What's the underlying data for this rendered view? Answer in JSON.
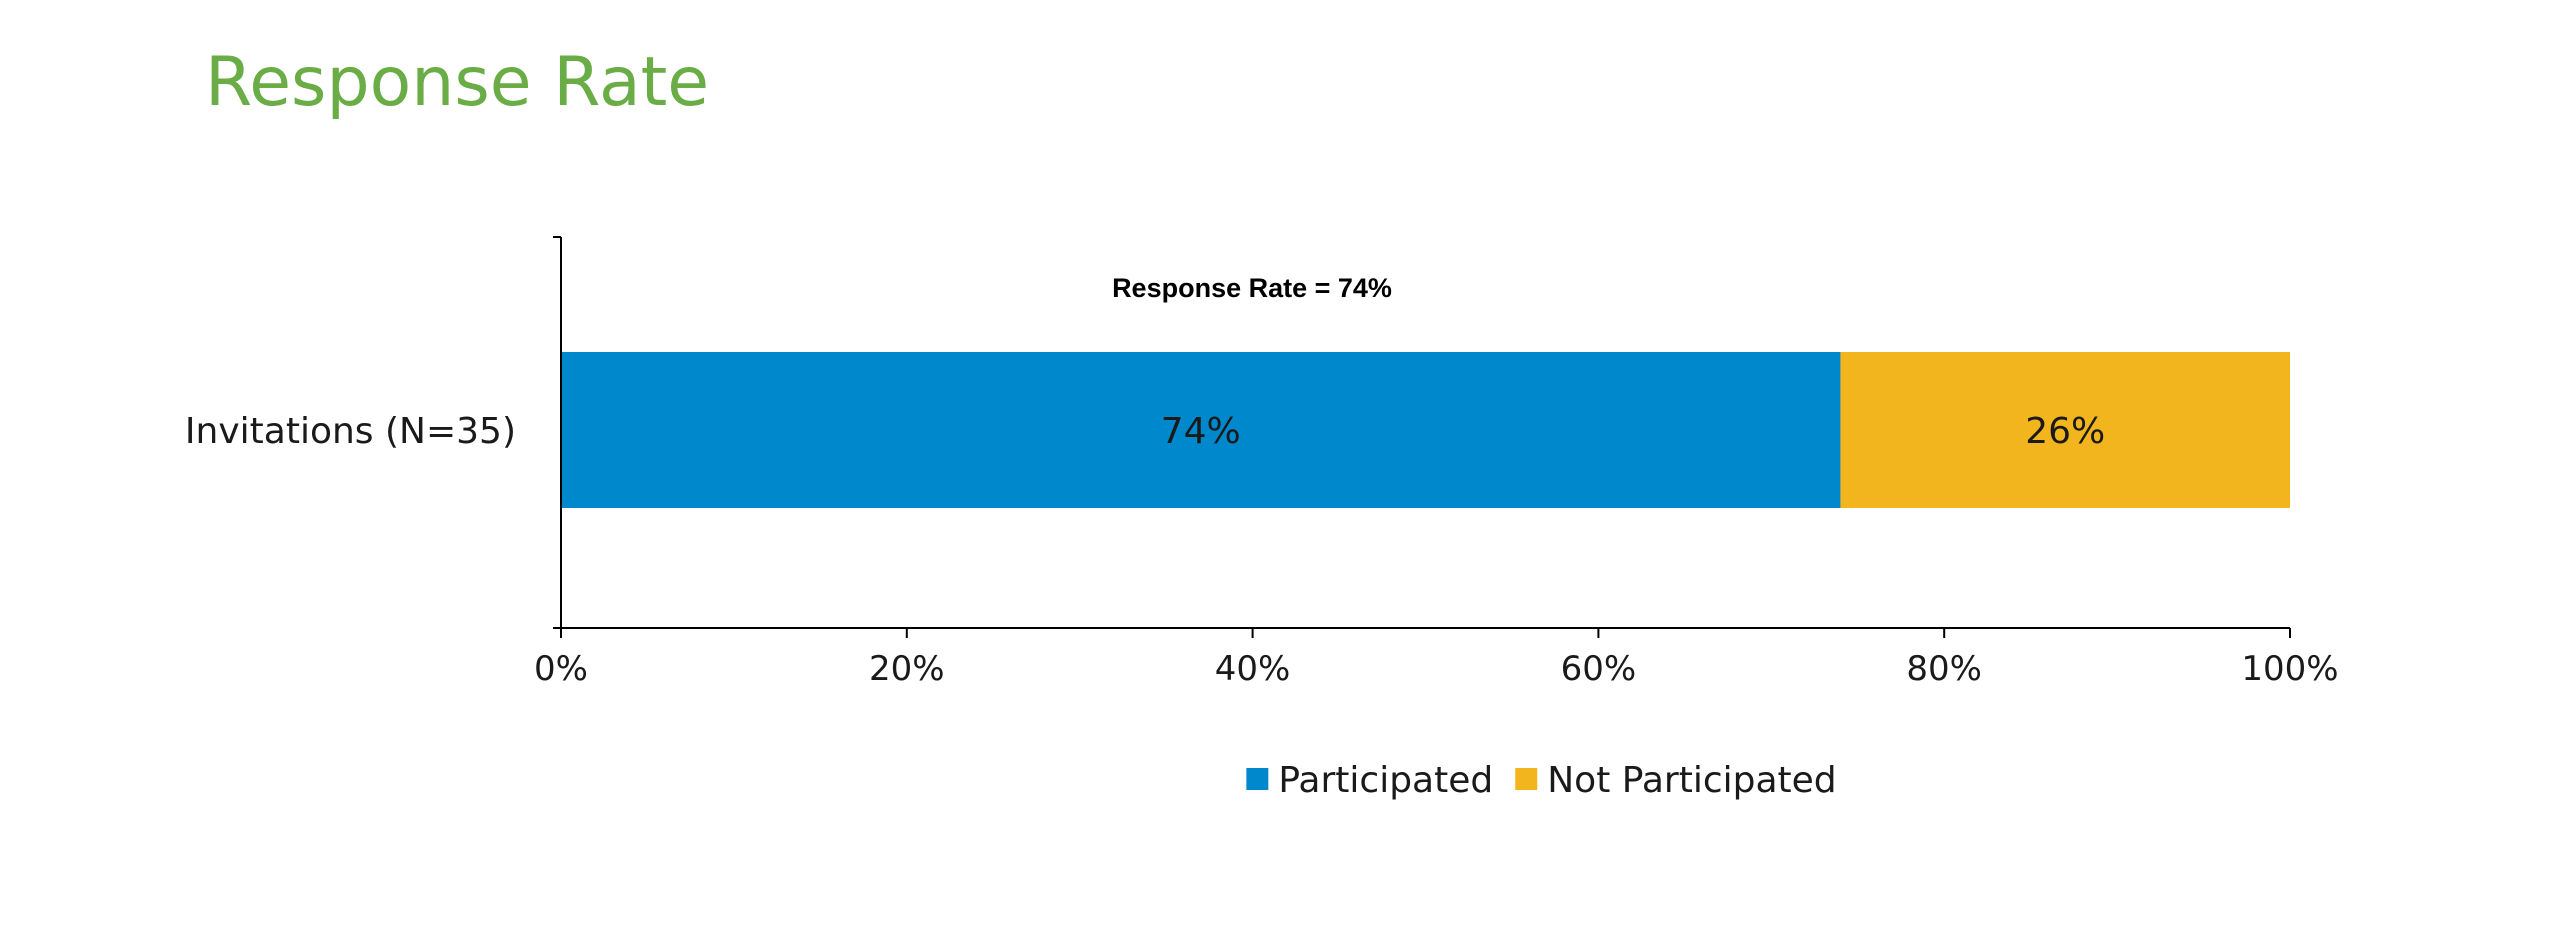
{
  "page": {
    "title": "Response Rate"
  },
  "chart_data": {
    "type": "bar",
    "orientation": "horizontal",
    "stacked": true,
    "categories": [
      "Invitations (N=35)"
    ],
    "series": [
      {
        "name": "Participated",
        "values": [
          74
        ],
        "labels": [
          "74%"
        ],
        "color": "#0088cc"
      },
      {
        "name": "Not Participated",
        "values": [
          26
        ],
        "labels": [
          "26%"
        ],
        "color": "#f2b51e"
      }
    ],
    "annotation": "Response Rate = 74%",
    "xlim": [
      0,
      100
    ],
    "x_ticks": [
      0,
      20,
      40,
      60,
      80,
      100
    ],
    "x_tick_labels": [
      "0%",
      "20%",
      "40%",
      "60%",
      "80%",
      "100%"
    ],
    "xlabel": "",
    "ylabel": "",
    "grid": false,
    "legend_position": "bottom",
    "colors": {
      "axis": "#000000",
      "title": "#6aac46"
    }
  }
}
